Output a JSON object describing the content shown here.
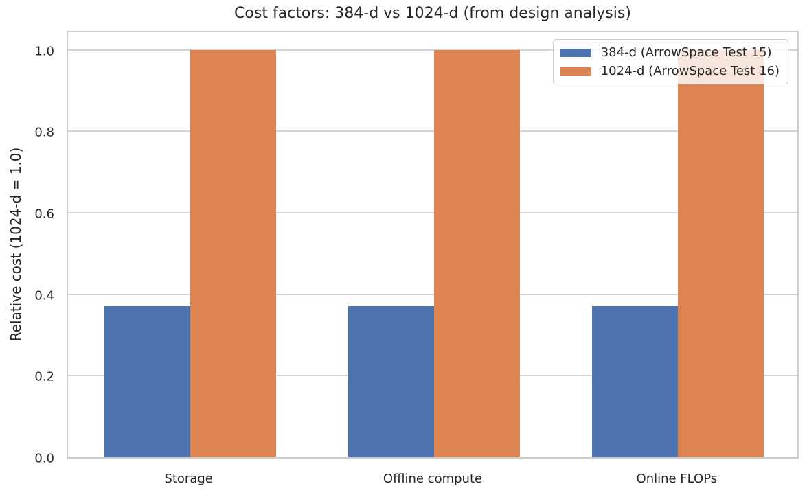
{
  "chart_data": {
    "type": "bar",
    "title": "Cost factors: 384-d vs 1024-d (from design analysis)",
    "categories": [
      "Storage",
      "Offline compute",
      "Online FLOPs"
    ],
    "series": [
      {
        "name": "384-d (ArrowSpace Test 15)",
        "color": "#4C72B0",
        "values": [
          0.37,
          0.37,
          0.37
        ]
      },
      {
        "name": "1024-d (ArrowSpace Test 16)",
        "color": "#DD8452",
        "values": [
          1.0,
          1.0,
          1.0
        ]
      }
    ],
    "xlabel": "",
    "ylabel": "Relative cost (1024-d = 1.0)",
    "ylim": [
      0,
      1.05
    ],
    "yticks": [
      0.0,
      0.2,
      0.4,
      0.6,
      0.8,
      1.0
    ],
    "ytick_labels": [
      "0.0",
      "0.2",
      "0.4",
      "0.6",
      "0.8",
      "1.0"
    ],
    "grid": "horizontal",
    "legend_position": "upper right",
    "grid_color": "#d4d4d4",
    "spine_color": "#cccccc",
    "text_color": "#262626"
  }
}
